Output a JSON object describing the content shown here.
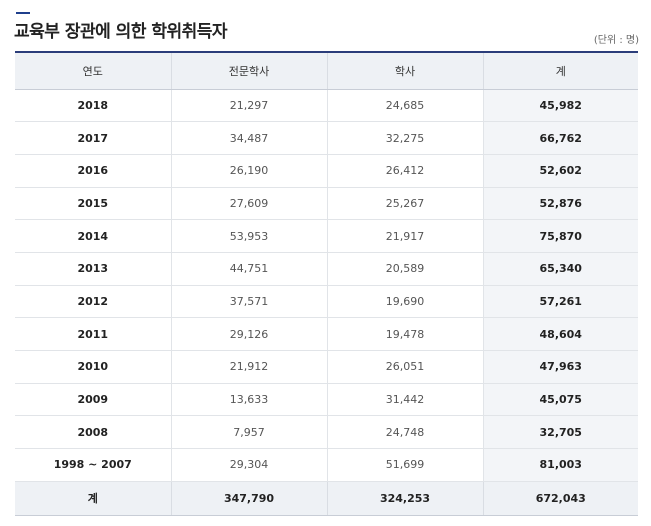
{
  "title": "교육부 장관에 의한 학위취득자",
  "unit": "(단위 : 명)",
  "columns": [
    "연도",
    "전문학사",
    "학사",
    "계"
  ],
  "rows": [
    {
      "year": "2018",
      "associate": "21,297",
      "bachelor": "24,685",
      "total": "45,982"
    },
    {
      "year": "2017",
      "associate": "34,487",
      "bachelor": "32,275",
      "total": "66,762"
    },
    {
      "year": "2016",
      "associate": "26,190",
      "bachelor": "26,412",
      "total": "52,602"
    },
    {
      "year": "2015",
      "associate": "27,609",
      "bachelor": "25,267",
      "total": "52,876"
    },
    {
      "year": "2014",
      "associate": "53,953",
      "bachelor": "21,917",
      "total": "75,870"
    },
    {
      "year": "2013",
      "associate": "44,751",
      "bachelor": "20,589",
      "total": "65,340"
    },
    {
      "year": "2012",
      "associate": "37,571",
      "bachelor": "19,690",
      "total": "57,261"
    },
    {
      "year": "2011",
      "associate": "29,126",
      "bachelor": "19,478",
      "total": "48,604"
    },
    {
      "year": "2010",
      "associate": "21,912",
      "bachelor": "26,051",
      "total": "47,963"
    },
    {
      "year": "2009",
      "associate": "13,633",
      "bachelor": "31,442",
      "total": "45,075"
    },
    {
      "year": "2008",
      "associate": "7,957",
      "bachelor": "24,748",
      "total": "32,705"
    },
    {
      "year": "1998 ~ 2007",
      "associate": "29,304",
      "bachelor": "51,699",
      "total": "81,003"
    }
  ],
  "footer": {
    "label": "계",
    "associate": "347,790",
    "bachelor": "324,253",
    "total": "672,043"
  },
  "colors": {
    "accent": "#1f3f8c",
    "header_bg": "#eef1f5",
    "total_col_bg": "#f3f5f8"
  }
}
